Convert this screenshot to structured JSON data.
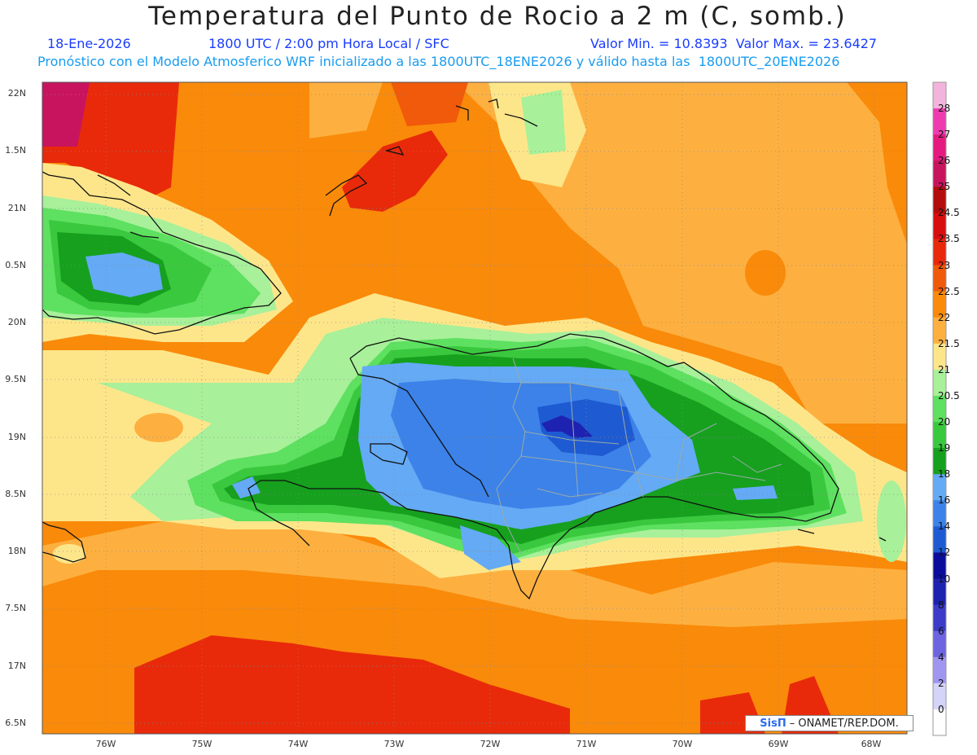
{
  "title": "Temperatura del Punto de Rocio a 2 m (C, somb.)",
  "subtitle": {
    "date": "18-Ene-2026",
    "time": "1800 UTC / 2:00 pm Hora Local / SFC",
    "minmax": "Valor Min. = 10.8393  Valor Max. = 23.6427"
  },
  "model_line": "Pronóstico con el Modelo Atmosferico WRF inicializado a las 1800UTC_18ENE2026 y válido hasta las  1800UTC_20ENE2026",
  "lat_labels": [
    "22N",
    "1.5N",
    "21N",
    "0.5N",
    "20N",
    "9.5N",
    "19N",
    "8.5N",
    "18N",
    "7.5N",
    "17N",
    "6.5N"
  ],
  "lon_labels": [
    "76W",
    "75W",
    "74W",
    "73W",
    "72W",
    "71W",
    "70W",
    "69W",
    "68W"
  ],
  "colorbar": {
    "levels": [
      "28",
      "27",
      "26",
      "25",
      "24.5",
      "23.5",
      "23",
      "22.5",
      "22",
      "21.5",
      "21",
      "20.5",
      "20",
      "19",
      "18",
      "16",
      "14",
      "12",
      "10",
      "8",
      "6",
      "4",
      "2",
      "0"
    ],
    "colors": [
      "#f2b4dc",
      "#ee3cb0",
      "#e41a80",
      "#c8145e",
      "#b40c0c",
      "#d80e0e",
      "#e82a0a",
      "#f05a0a",
      "#fa8a0a",
      "#fdb040",
      "#fde68a",
      "#a8f09a",
      "#5ee060",
      "#3ac83e",
      "#16a01e",
      "#64aaf5",
      "#3c82e8",
      "#1e5ad2",
      "#0c0c9c",
      "#1e22b0",
      "#3c3cc8",
      "#6c64e0",
      "#a096f0",
      "#d4d4f8",
      "#ffffff"
    ]
  },
  "credit": {
    "brand": "SisΠ",
    "text": "– ONAMET/REP.DOM."
  }
}
